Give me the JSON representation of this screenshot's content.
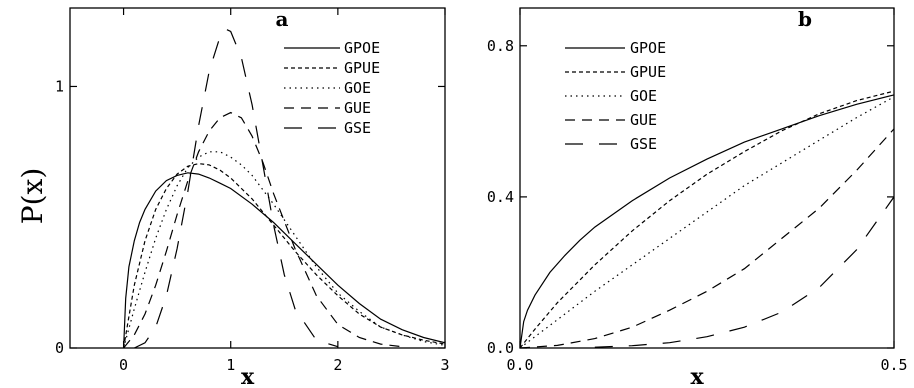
{
  "ylabel": "P(x)",
  "chart_data": [
    {
      "type": "line",
      "panel_label": "a",
      "xlabel": "x",
      "xlim": [
        -0.5,
        3.0
      ],
      "ylim": [
        0,
        1.3
      ],
      "xticks": [
        {
          "value": 0,
          "label": "0"
        },
        {
          "value": 1,
          "label": "1"
        },
        {
          "value": 2,
          "label": "2"
        },
        {
          "value": 3,
          "label": "3"
        }
      ],
      "yticks": [
        {
          "value": 0,
          "label": "0"
        },
        {
          "value": 1,
          "label": "1"
        }
      ],
      "legend_position": "top-right",
      "series": [
        {
          "name": "GPOE",
          "dash": "solid",
          "x": [
            0,
            0.02,
            0.05,
            0.1,
            0.15,
            0.2,
            0.3,
            0.4,
            0.5,
            0.6,
            0.7,
            0.8,
            0.9,
            1.0,
            1.2,
            1.4,
            1.6,
            1.8,
            2.0,
            2.2,
            2.4,
            2.6,
            2.8,
            3.0
          ],
          "y": [
            0,
            0.19,
            0.31,
            0.41,
            0.48,
            0.53,
            0.6,
            0.64,
            0.66,
            0.67,
            0.665,
            0.65,
            0.63,
            0.61,
            0.55,
            0.48,
            0.4,
            0.32,
            0.24,
            0.17,
            0.11,
            0.07,
            0.04,
            0.02
          ]
        },
        {
          "name": "GPUE",
          "dash": "dashed-short",
          "x": [
            0,
            0.05,
            0.1,
            0.2,
            0.3,
            0.4,
            0.5,
            0.6,
            0.7,
            0.8,
            0.9,
            1.0,
            1.2,
            1.4,
            1.6,
            1.8,
            2.0,
            2.2,
            2.4,
            2.6,
            2.8,
            3.0
          ],
          "y": [
            0,
            0.12,
            0.24,
            0.41,
            0.53,
            0.61,
            0.665,
            0.695,
            0.705,
            0.7,
            0.68,
            0.65,
            0.57,
            0.47,
            0.37,
            0.28,
            0.2,
            0.13,
            0.08,
            0.05,
            0.03,
            0.015
          ]
        },
        {
          "name": "GOE",
          "dash": "dotted",
          "x": [
            0,
            0.1,
            0.2,
            0.3,
            0.4,
            0.5,
            0.6,
            0.7,
            0.8,
            0.9,
            1.0,
            1.1,
            1.2,
            1.4,
            1.6,
            1.8,
            2.0,
            2.2,
            2.4,
            2.6,
            2.8,
            3.0
          ],
          "y": [
            0,
            0.15,
            0.29,
            0.42,
            0.53,
            0.62,
            0.69,
            0.73,
            0.75,
            0.75,
            0.73,
            0.7,
            0.66,
            0.55,
            0.43,
            0.31,
            0.21,
            0.14,
            0.08,
            0.05,
            0.025,
            0.01
          ]
        },
        {
          "name": "GUE",
          "dash": "dashed-medium",
          "x": [
            0,
            0.1,
            0.2,
            0.3,
            0.4,
            0.5,
            0.6,
            0.7,
            0.8,
            0.9,
            1.0,
            1.1,
            1.2,
            1.3,
            1.4,
            1.6,
            1.8,
            2.0,
            2.2,
            2.4,
            2.6
          ],
          "y": [
            0,
            0.05,
            0.13,
            0.24,
            0.37,
            0.51,
            0.64,
            0.75,
            0.83,
            0.88,
            0.9,
            0.88,
            0.81,
            0.71,
            0.59,
            0.38,
            0.2,
            0.09,
            0.04,
            0.015,
            0.005
          ]
        },
        {
          "name": "GSE",
          "dash": "dashed-long",
          "x": [
            0.1,
            0.2,
            0.3,
            0.4,
            0.5,
            0.6,
            0.7,
            0.8,
            0.9,
            0.95,
            1.0,
            1.1,
            1.2,
            1.3,
            1.4,
            1.5,
            1.6,
            1.8,
            2.0
          ],
          "y": [
            0,
            0.02,
            0.08,
            0.2,
            0.38,
            0.6,
            0.85,
            1.06,
            1.19,
            1.22,
            1.21,
            1.11,
            0.93,
            0.7,
            0.47,
            0.28,
            0.15,
            0.03,
            0.005
          ]
        }
      ]
    },
    {
      "type": "line",
      "panel_label": "b",
      "xlabel": "x",
      "xlim": [
        0.0,
        0.5
      ],
      "ylim": [
        0.0,
        0.9
      ],
      "xticks": [
        {
          "value": 0.0,
          "label": "0.0"
        },
        {
          "value": 0.5,
          "label": "0.5"
        }
      ],
      "yticks": [
        {
          "value": 0.0,
          "label": "0.0"
        },
        {
          "value": 0.4,
          "label": "0.4"
        },
        {
          "value": 0.8,
          "label": "0.8"
        }
      ],
      "legend_position": "top-left",
      "series": [
        {
          "name": "GPOE",
          "dash": "solid",
          "x": [
            0,
            0.005,
            0.01,
            0.02,
            0.04,
            0.06,
            0.08,
            0.1,
            0.15,
            0.2,
            0.25,
            0.3,
            0.35,
            0.4,
            0.45,
            0.5
          ],
          "y": [
            0,
            0.07,
            0.1,
            0.14,
            0.2,
            0.245,
            0.285,
            0.32,
            0.39,
            0.45,
            0.5,
            0.545,
            0.58,
            0.615,
            0.645,
            0.67
          ]
        },
        {
          "name": "GPUE",
          "dash": "dashed-short",
          "x": [
            0,
            0.02,
            0.05,
            0.1,
            0.15,
            0.2,
            0.25,
            0.3,
            0.35,
            0.4,
            0.45,
            0.5
          ],
          "y": [
            0,
            0.05,
            0.12,
            0.22,
            0.31,
            0.39,
            0.46,
            0.52,
            0.575,
            0.62,
            0.655,
            0.68
          ]
        },
        {
          "name": "GOE",
          "dash": "dotted",
          "x": [
            0,
            0.05,
            0.1,
            0.15,
            0.2,
            0.25,
            0.3,
            0.35,
            0.4,
            0.45,
            0.5
          ],
          "y": [
            0,
            0.075,
            0.15,
            0.22,
            0.29,
            0.36,
            0.43,
            0.49,
            0.55,
            0.61,
            0.665
          ]
        },
        {
          "name": "GUE",
          "dash": "dashed-medium",
          "x": [
            0,
            0.05,
            0.1,
            0.15,
            0.2,
            0.25,
            0.3,
            0.35,
            0.4,
            0.45,
            0.5
          ],
          "y": [
            0,
            0.007,
            0.025,
            0.055,
            0.1,
            0.15,
            0.21,
            0.29,
            0.37,
            0.47,
            0.58
          ]
        },
        {
          "name": "GSE",
          "dash": "dashed-long",
          "x": [
            0.1,
            0.15,
            0.2,
            0.25,
            0.3,
            0.35,
            0.4,
            0.45,
            0.5
          ],
          "y": [
            0.002,
            0.006,
            0.014,
            0.03,
            0.055,
            0.095,
            0.16,
            0.26,
            0.4
          ]
        }
      ]
    }
  ]
}
